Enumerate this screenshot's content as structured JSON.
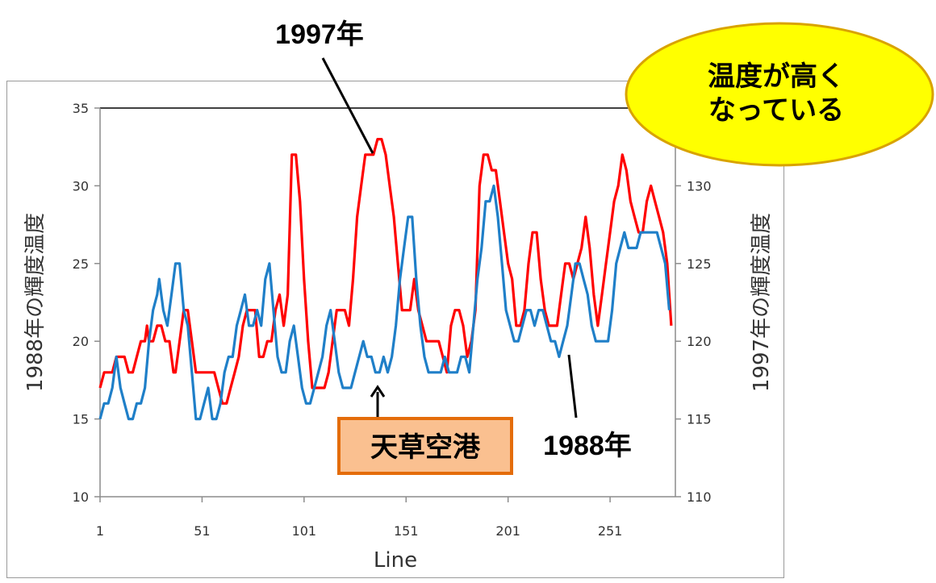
{
  "chart_data": {
    "type": "line",
    "xlabel": "Line",
    "ylabel_left": "1988年の輝度温度",
    "ylabel_right": "1997年の輝度温度",
    "x_ticks": [
      1,
      51,
      101,
      151,
      201,
      251
    ],
    "xlim": [
      1,
      283
    ],
    "y_left": {
      "lim": [
        10,
        35
      ],
      "ticks": [
        10,
        15,
        20,
        25,
        30,
        35
      ]
    },
    "y_right": {
      "lim": [
        110,
        135
      ],
      "ticks": [
        110,
        115,
        120,
        125,
        130
      ]
    },
    "grid": false,
    "reference_line_left": 35,
    "series": [
      {
        "name": "1997年",
        "axis": "right",
        "color": "#ff0000",
        "points": [
          [
            1,
            117
          ],
          [
            3,
            118
          ],
          [
            7,
            118
          ],
          [
            9,
            119
          ],
          [
            13,
            119
          ],
          [
            15,
            118
          ],
          [
            17,
            118
          ],
          [
            19,
            119
          ],
          [
            21,
            120
          ],
          [
            23,
            120
          ],
          [
            24,
            121
          ],
          [
            25,
            120
          ],
          [
            27,
            120
          ],
          [
            29,
            121
          ],
          [
            31,
            121
          ],
          [
            33,
            120
          ],
          [
            35,
            120
          ],
          [
            37,
            118
          ],
          [
            38,
            118
          ],
          [
            40,
            120
          ],
          [
            42,
            122
          ],
          [
            44,
            122
          ],
          [
            46,
            120
          ],
          [
            48,
            118
          ],
          [
            53,
            118
          ],
          [
            57,
            118
          ],
          [
            59,
            117
          ],
          [
            61,
            116
          ],
          [
            63,
            116
          ],
          [
            65,
            117
          ],
          [
            67,
            118
          ],
          [
            69,
            119
          ],
          [
            71,
            121
          ],
          [
            73,
            122
          ],
          [
            75,
            122
          ],
          [
            77,
            122
          ],
          [
            79,
            119
          ],
          [
            81,
            119
          ],
          [
            83,
            120
          ],
          [
            85,
            120
          ],
          [
            87,
            122
          ],
          [
            89,
            123
          ],
          [
            91,
            121
          ],
          [
            93,
            123
          ],
          [
            95,
            132
          ],
          [
            97,
            132
          ],
          [
            99,
            129
          ],
          [
            101,
            124
          ],
          [
            103,
            120
          ],
          [
            105,
            117
          ],
          [
            107,
            117
          ],
          [
            109,
            117
          ],
          [
            111,
            117
          ],
          [
            113,
            118
          ],
          [
            115,
            120
          ],
          [
            117,
            122
          ],
          [
            119,
            122
          ],
          [
            121,
            122
          ],
          [
            123,
            121
          ],
          [
            125,
            124
          ],
          [
            127,
            128
          ],
          [
            129,
            130
          ],
          [
            131,
            132
          ],
          [
            133,
            132
          ],
          [
            135,
            132
          ],
          [
            137,
            133
          ],
          [
            139,
            133
          ],
          [
            141,
            132
          ],
          [
            143,
            130
          ],
          [
            145,
            128
          ],
          [
            147,
            125
          ],
          [
            149,
            122
          ],
          [
            151,
            122
          ],
          [
            153,
            122
          ],
          [
            155,
            124
          ],
          [
            157,
            122
          ],
          [
            159,
            121
          ],
          [
            161,
            120
          ],
          [
            163,
            120
          ],
          [
            165,
            120
          ],
          [
            167,
            120
          ],
          [
            169,
            119
          ],
          [
            171,
            118
          ],
          [
            173,
            121
          ],
          [
            175,
            122
          ],
          [
            177,
            122
          ],
          [
            179,
            121
          ],
          [
            181,
            119
          ],
          [
            183,
            120
          ],
          [
            185,
            122
          ],
          [
            187,
            130
          ],
          [
            189,
            132
          ],
          [
            191,
            132
          ],
          [
            193,
            131
          ],
          [
            195,
            131
          ],
          [
            197,
            129
          ],
          [
            199,
            127
          ],
          [
            201,
            125
          ],
          [
            203,
            124
          ],
          [
            205,
            121
          ],
          [
            207,
            121
          ],
          [
            209,
            122
          ],
          [
            211,
            125
          ],
          [
            213,
            127
          ],
          [
            215,
            127
          ],
          [
            217,
            124
          ],
          [
            219,
            122
          ],
          [
            221,
            121
          ],
          [
            223,
            121
          ],
          [
            225,
            121
          ],
          [
            227,
            123
          ],
          [
            229,
            125
          ],
          [
            231,
            125
          ],
          [
            233,
            124
          ],
          [
            235,
            125
          ],
          [
            237,
            126
          ],
          [
            239,
            128
          ],
          [
            241,
            126
          ],
          [
            243,
            123
          ],
          [
            245,
            121
          ],
          [
            247,
            123
          ],
          [
            249,
            125
          ],
          [
            251,
            127
          ],
          [
            253,
            129
          ],
          [
            255,
            130
          ],
          [
            257,
            132
          ],
          [
            259,
            131
          ],
          [
            261,
            129
          ],
          [
            263,
            128
          ],
          [
            265,
            127
          ],
          [
            267,
            127
          ],
          [
            269,
            129
          ],
          [
            271,
            130
          ],
          [
            273,
            129
          ],
          [
            275,
            128
          ],
          [
            277,
            127
          ],
          [
            279,
            125
          ],
          [
            281,
            121
          ]
        ]
      },
      {
        "name": "1988年",
        "axis": "left",
        "color": "#1f7fc8",
        "points": [
          [
            1,
            15
          ],
          [
            3,
            16
          ],
          [
            5,
            16
          ],
          [
            7,
            17
          ],
          [
            9,
            19
          ],
          [
            11,
            17
          ],
          [
            13,
            16
          ],
          [
            15,
            15
          ],
          [
            17,
            15
          ],
          [
            19,
            16
          ],
          [
            21,
            16
          ],
          [
            23,
            17
          ],
          [
            25,
            20
          ],
          [
            27,
            22
          ],
          [
            29,
            23
          ],
          [
            30,
            24
          ],
          [
            32,
            22
          ],
          [
            34,
            21
          ],
          [
            36,
            23
          ],
          [
            38,
            25
          ],
          [
            40,
            25
          ],
          [
            42,
            22
          ],
          [
            44,
            21
          ],
          [
            46,
            18
          ],
          [
            48,
            15
          ],
          [
            50,
            15
          ],
          [
            52,
            16
          ],
          [
            54,
            17
          ],
          [
            56,
            15
          ],
          [
            58,
            15
          ],
          [
            60,
            16
          ],
          [
            62,
            18
          ],
          [
            64,
            19
          ],
          [
            66,
            19
          ],
          [
            68,
            21
          ],
          [
            70,
            22
          ],
          [
            72,
            23
          ],
          [
            74,
            21
          ],
          [
            76,
            21
          ],
          [
            78,
            22
          ],
          [
            80,
            21
          ],
          [
            82,
            24
          ],
          [
            84,
            25
          ],
          [
            86,
            22
          ],
          [
            88,
            19
          ],
          [
            90,
            18
          ],
          [
            92,
            18
          ],
          [
            94,
            20
          ],
          [
            96,
            21
          ],
          [
            98,
            19
          ],
          [
            100,
            17
          ],
          [
            102,
            16
          ],
          [
            104,
            16
          ],
          [
            106,
            17
          ],
          [
            108,
            18
          ],
          [
            110,
            19
          ],
          [
            112,
            21
          ],
          [
            114,
            22
          ],
          [
            116,
            20
          ],
          [
            118,
            18
          ],
          [
            120,
            17
          ],
          [
            122,
            17
          ],
          [
            124,
            17
          ],
          [
            126,
            18
          ],
          [
            128,
            19
          ],
          [
            130,
            20
          ],
          [
            132,
            19
          ],
          [
            134,
            19
          ],
          [
            136,
            18
          ],
          [
            138,
            18
          ],
          [
            140,
            19
          ],
          [
            142,
            18
          ],
          [
            144,
            19
          ],
          [
            146,
            21
          ],
          [
            148,
            24
          ],
          [
            150,
            26
          ],
          [
            152,
            28
          ],
          [
            154,
            28
          ],
          [
            156,
            24
          ],
          [
            158,
            21
          ],
          [
            160,
            19
          ],
          [
            162,
            18
          ],
          [
            164,
            18
          ],
          [
            166,
            18
          ],
          [
            168,
            18
          ],
          [
            170,
            19
          ],
          [
            172,
            18
          ],
          [
            174,
            18
          ],
          [
            176,
            18
          ],
          [
            178,
            19
          ],
          [
            180,
            19
          ],
          [
            182,
            18
          ],
          [
            184,
            21
          ],
          [
            186,
            24
          ],
          [
            188,
            26
          ],
          [
            190,
            29
          ],
          [
            192,
            29
          ],
          [
            194,
            30
          ],
          [
            196,
            28
          ],
          [
            198,
            25
          ],
          [
            200,
            22
          ],
          [
            202,
            21
          ],
          [
            204,
            20
          ],
          [
            206,
            20
          ],
          [
            208,
            21
          ],
          [
            210,
            22
          ],
          [
            212,
            22
          ],
          [
            214,
            21
          ],
          [
            216,
            22
          ],
          [
            218,
            22
          ],
          [
            220,
            21
          ],
          [
            222,
            20
          ],
          [
            224,
            20
          ],
          [
            226,
            19
          ],
          [
            228,
            20
          ],
          [
            230,
            21
          ],
          [
            232,
            23
          ],
          [
            234,
            25
          ],
          [
            236,
            25
          ],
          [
            238,
            24
          ],
          [
            240,
            23
          ],
          [
            242,
            21
          ],
          [
            244,
            20
          ],
          [
            246,
            20
          ],
          [
            248,
            20
          ],
          [
            250,
            20
          ],
          [
            252,
            22
          ],
          [
            254,
            25
          ],
          [
            256,
            26
          ],
          [
            258,
            27
          ],
          [
            260,
            26
          ],
          [
            262,
            26
          ],
          [
            264,
            26
          ],
          [
            266,
            27
          ],
          [
            268,
            27
          ],
          [
            270,
            27
          ],
          [
            272,
            27
          ],
          [
            274,
            27
          ],
          [
            276,
            26
          ],
          [
            278,
            25
          ],
          [
            280,
            22
          ]
        ]
      }
    ]
  },
  "annotations": {
    "label_1997": "1997年",
    "label_1988": "1988年",
    "airport_label": "天草空港",
    "callout_line1": "温度が高く",
    "callout_line2": "なっている"
  },
  "colors": {
    "callout_fill": "#ffff00",
    "callout_stroke": "#d9a300",
    "box_fill": "#fac090",
    "box_stroke": "#e46c0a"
  }
}
